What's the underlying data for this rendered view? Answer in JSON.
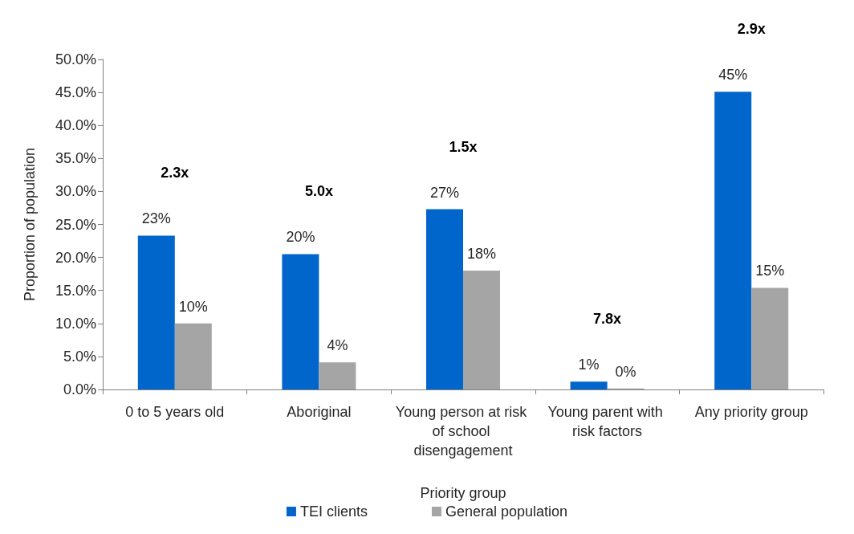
{
  "chart_data": {
    "type": "bar",
    "xlabel": "Priority group",
    "ylabel": "Proportion of population",
    "categories": [
      "0 to 5 years old",
      "Aboriginal",
      "Young person at risk of school disengagement",
      "Young parent with risk factors",
      "Any priority group"
    ],
    "series": [
      {
        "name": "TEI clients",
        "color": "#0066cc",
        "values": [
          23.3,
          20.5,
          27.3,
          1.2,
          45.1
        ],
        "value_labels": [
          "23%",
          "20%",
          "27%",
          "1%",
          "45%"
        ]
      },
      {
        "name": "General population",
        "color": "#a5a5a5",
        "values": [
          10.0,
          4.1,
          18.0,
          0.15,
          15.4
        ],
        "value_labels": [
          "10%",
          "4%",
          "18%",
          "0%",
          "15%"
        ]
      }
    ],
    "ylim": [
      0,
      50
    ],
    "yticks": [
      {
        "value": 0,
        "label": "0.0%"
      },
      {
        "value": 5,
        "label": "5.0%"
      },
      {
        "value": 10,
        "label": "10.0%"
      },
      {
        "value": 15,
        "label": "15.0%"
      },
      {
        "value": 20,
        "label": "20.0%"
      },
      {
        "value": 25,
        "label": "25.0%"
      },
      {
        "value": 30,
        "label": "30.0%"
      },
      {
        "value": 35,
        "label": "35.0%"
      },
      {
        "value": 40,
        "label": "40.0%"
      },
      {
        "value": 45,
        "label": "45.0%"
      },
      {
        "value": 50,
        "label": "50.0%"
      }
    ],
    "annotations": [
      "2.3x",
      "5.0x",
      "1.5x",
      "7.8x",
      "2.9x"
    ],
    "grid": false,
    "legend": "bottom"
  }
}
